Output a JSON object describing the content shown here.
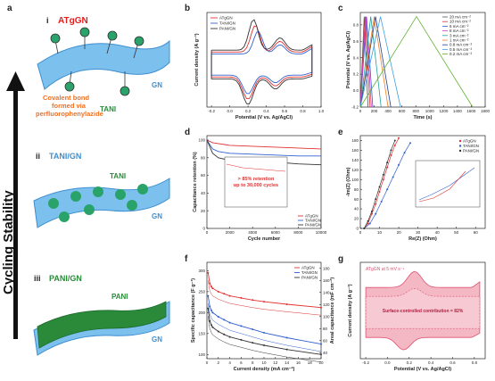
{
  "panel_a": {
    "label": "a",
    "side_title": "Cycling Stability",
    "i": {
      "numeral": "i",
      "name": "ATgGN",
      "gn": "GN",
      "tani": "TANI",
      "bond_line1": "Covalent bond",
      "bond_line2": "formed via",
      "bond_line3": "perfluorophenylazide"
    },
    "ii": {
      "numeral": "ii",
      "name": "TANI/GN",
      "tani": "TANI",
      "gn": "GN"
    },
    "iii": {
      "numeral": "iii",
      "name": "PANI/GN",
      "pani": "PANI",
      "gn": "GN"
    },
    "colors": {
      "gn": "#5aa7e0",
      "sphere": "#2aa36a",
      "pani": "#2a8a3a",
      "accent_red": "#e02020",
      "accent_orange": "#f07020"
    }
  },
  "chart_data": [
    {
      "id": "b",
      "type": "line",
      "xlabel": "Potential (V vs. Ag/AgCl)",
      "ylabel": "Current density (A g⁻¹)",
      "xticks": [
        "-0.2",
        "0.0",
        "0.2",
        "0.4",
        "0.6",
        "0.8",
        "1.0"
      ],
      "xlim": [
        -0.25,
        1.0
      ],
      "legend_position": "top-left",
      "series": [
        {
          "name": "ATgGN",
          "color": "#e03030"
        },
        {
          "name": "TANI/GN",
          "color": "#3060d0"
        },
        {
          "name": "PANI/GN",
          "color": "#333333"
        }
      ]
    },
    {
      "id": "c",
      "type": "line",
      "xlabel": "Time (s)",
      "ylabel": "Potential (V vs. Ag/AgCl)",
      "xticks": [
        "0",
        "200",
        "400",
        "600",
        "800",
        "1000",
        "1200",
        "1400",
        "1600",
        "1800"
      ],
      "yticks": [
        "-0.2",
        "0.0",
        "0.2",
        "0.4",
        "0.6",
        "0.8"
      ],
      "xlim": [
        0,
        1800
      ],
      "ylim": [
        -0.2,
        0.95
      ],
      "legend_position": "right",
      "series": [
        {
          "name": "20 mA cm⁻²",
          "color": "#555555",
          "peak_time": 55
        },
        {
          "name": "10 mA cm⁻²",
          "color": "#e03030",
          "peak_time": 70
        },
        {
          "name": "6 mA cm⁻²",
          "color": "#3060d0",
          "peak_time": 90
        },
        {
          "name": "8 mA cm⁻²",
          "color": "#d040d0",
          "peak_time": 80
        },
        {
          "name": "3 mA cm⁻²",
          "color": "#20a0a0",
          "peak_time": 150
        },
        {
          "name": "1 mA cm⁻²",
          "color": "#f08020",
          "peak_time": 200
        },
        {
          "name": "0.8 mA cm⁻²",
          "color": "#2040a0",
          "peak_time": 220
        },
        {
          "name": "0.5 mA cm⁻²",
          "color": "#40a0e0",
          "peak_time": 290
        },
        {
          "name": "0.2 mA cm⁻²",
          "color": "#60b030",
          "peak_time": 810
        }
      ]
    },
    {
      "id": "d",
      "type": "line",
      "xlabel": "Cycle number",
      "ylabel": "Capacitance retention (%)",
      "xticks": [
        "0",
        "2000",
        "4000",
        "6000",
        "8000",
        "10000"
      ],
      "yticks": [
        "0",
        "20",
        "40",
        "60",
        "80",
        "100"
      ],
      "xlim": [
        0,
        10000
      ],
      "ylim": [
        0,
        105
      ],
      "annotation_line1": "> 85% retention",
      "annotation_line2": "up to 30,000 cycles",
      "legend_position": "bottom-right",
      "series": [
        {
          "name": "ATgGN",
          "color": "#e03030",
          "x": [
            0,
            500,
            1000,
            2000,
            4000,
            6000,
            8000,
            10000
          ],
          "y": [
            100,
            97,
            96,
            94,
            93,
            92,
            91,
            90
          ]
        },
        {
          "name": "TANI/GN",
          "color": "#3060d0",
          "x": [
            0,
            500,
            1000,
            2000,
            4000,
            6000,
            8000,
            10000
          ],
          "y": [
            100,
            90,
            87,
            85,
            84,
            83,
            82,
            82
          ]
        },
        {
          "name": "PANI/GN",
          "color": "#333333",
          "x": [
            0,
            500,
            1000,
            2000,
            4000,
            6000,
            8000,
            10000
          ],
          "y": [
            100,
            85,
            80,
            77,
            76,
            75,
            73,
            72
          ]
        }
      ]
    },
    {
      "id": "e",
      "type": "scatter",
      "xlabel": "Re(Z) (Ohm)",
      "ylabel": "-Im(Z) (Ohm)",
      "xticks": [
        "0",
        "10",
        "20",
        "30",
        "40",
        "50",
        "60"
      ],
      "yticks": [
        "0",
        "20",
        "40",
        "60",
        "80",
        "100",
        "120",
        "140",
        "160",
        "180"
      ],
      "xlim": [
        0,
        65
      ],
      "ylim": [
        0,
        190
      ],
      "legend_position": "top-right",
      "series": [
        {
          "name": "ATgGN",
          "color": "#e03030",
          "x": [
            2,
            4,
            6,
            8,
            10,
            12,
            14,
            16,
            18,
            20
          ],
          "y": [
            0,
            10,
            30,
            50,
            75,
            100,
            125,
            150,
            170,
            185
          ]
        },
        {
          "name": "TANI/GN",
          "color": "#3060d0",
          "x": [
            2,
            5,
            8,
            11,
            14,
            17,
            20,
            23,
            26
          ],
          "y": [
            0,
            10,
            30,
            55,
            80,
            105,
            130,
            155,
            175
          ]
        },
        {
          "name": "PANI/GN",
          "color": "#333333",
          "x": [
            2,
            4,
            6,
            8,
            10,
            12,
            14,
            16,
            18
          ],
          "y": [
            0,
            15,
            35,
            60,
            85,
            110,
            135,
            160,
            180
          ]
        }
      ]
    },
    {
      "id": "f",
      "type": "line",
      "xlabel": "Current density (mA cm⁻²)",
      "ylabel": "Specific capacitance (F g⁻¹)",
      "ylabel2": "Areal capacitance (mF cm⁻²)",
      "xticks": [
        "0",
        "2",
        "4",
        "6",
        "8",
        "10",
        "12",
        "14",
        "16",
        "18",
        "20"
      ],
      "yticks": [
        "100",
        "150",
        "200",
        "250",
        "300"
      ],
      "yticks2": [
        "40",
        "60",
        "80",
        "100",
        "120",
        "140",
        "160",
        "180"
      ],
      "xlim": [
        0,
        20
      ],
      "ylim": [
        90,
        320
      ],
      "legend_position": "top-right",
      "series": [
        {
          "name": "ATgGN",
          "color": "#e03030",
          "x": [
            0.2,
            0.5,
            0.8,
            1,
            2,
            3,
            4,
            6,
            8,
            10,
            14,
            20
          ],
          "y": [
            295,
            270,
            262,
            258,
            250,
            245,
            240,
            235,
            230,
            226,
            220,
            212
          ]
        },
        {
          "name": "TANI/GN",
          "color": "#3060d0",
          "x": [
            0.2,
            0.5,
            0.8,
            1,
            2,
            3,
            4,
            6,
            8,
            10,
            14,
            20
          ],
          "y": [
            240,
            215,
            205,
            200,
            190,
            183,
            176,
            168,
            160,
            152,
            140,
            125
          ]
        },
        {
          "name": "PANI/GN",
          "color": "#333333",
          "x": [
            0.2,
            0.5,
            0.8,
            1,
            2,
            3,
            4,
            6,
            8,
            10,
            14,
            20
          ],
          "y": [
            210,
            180,
            170,
            165,
            155,
            148,
            142,
            135,
            128,
            122,
            112,
            100
          ]
        }
      ]
    },
    {
      "id": "g",
      "type": "area",
      "xlabel": "Potential (V vs. Ag/AgCl)",
      "ylabel": "Current density (A g⁻¹)",
      "xticks": [
        "-0.2",
        "0.0",
        "0.2",
        "0.4",
        "0.6",
        "0.8"
      ],
      "xlim": [
        -0.25,
        0.9
      ],
      "legend": "ATgGN at 5 mV s⁻¹",
      "annotation": "Surface-controlled contribution = 82%",
      "fill_color": "#f4b8c4",
      "line_color": "#e05070"
    }
  ]
}
